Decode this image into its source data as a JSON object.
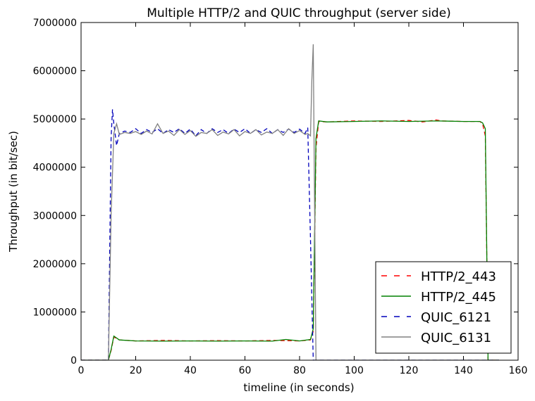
{
  "chart_data": {
    "type": "line",
    "title": "Multiple HTTP/2 and QUIC throughput (server side)",
    "xlabel": "timeline (in seconds)",
    "ylabel": "Throughput (in bit/sec)",
    "xlim": [
      0,
      160
    ],
    "ylim": [
      0,
      7000000
    ],
    "x_ticks": [
      "0",
      "20",
      "40",
      "60",
      "80",
      "100",
      "120",
      "140",
      "160"
    ],
    "y_ticks": [
      "0",
      "1000000",
      "2000000",
      "3000000",
      "4000000",
      "5000000",
      "6000000",
      "7000000"
    ],
    "grid": false,
    "legend_position": "lower-right",
    "series": [
      {
        "name": "HTTP/2_443",
        "color": "#ff0000",
        "style": "dashed",
        "points": [
          [
            0,
            0
          ],
          [
            10,
            0
          ],
          [
            11,
            200000
          ],
          [
            12,
            480000
          ],
          [
            14,
            420000
          ],
          [
            20,
            400000
          ],
          [
            30,
            410000
          ],
          [
            40,
            400000
          ],
          [
            50,
            405000
          ],
          [
            60,
            400000
          ],
          [
            70,
            410000
          ],
          [
            80,
            400000
          ],
          [
            84,
            420000
          ],
          [
            85,
            600000
          ],
          [
            86,
            4400000
          ],
          [
            87,
            4950000
          ],
          [
            90,
            4940000
          ],
          [
            100,
            4960000
          ],
          [
            110,
            4950000
          ],
          [
            120,
            4970000
          ],
          [
            125,
            4940000
          ],
          [
            130,
            4980000
          ],
          [
            132,
            4960000
          ],
          [
            140,
            4950000
          ],
          [
            146,
            4950000
          ],
          [
            147,
            4900000
          ],
          [
            148,
            4650000
          ],
          [
            149,
            0
          ],
          [
            153,
            0
          ]
        ]
      },
      {
        "name": "HTTP/2_445",
        "color": "#008000",
        "style": "solid",
        "points": [
          [
            0,
            0
          ],
          [
            10,
            0
          ],
          [
            11,
            220000
          ],
          [
            12,
            500000
          ],
          [
            14,
            420000
          ],
          [
            20,
            400000
          ],
          [
            30,
            395000
          ],
          [
            40,
            400000
          ],
          [
            50,
            395000
          ],
          [
            60,
            400000
          ],
          [
            70,
            395000
          ],
          [
            75,
            430000
          ],
          [
            80,
            400000
          ],
          [
            84,
            430000
          ],
          [
            85,
            650000
          ],
          [
            86,
            4600000
          ],
          [
            87,
            4960000
          ],
          [
            90,
            4940000
          ],
          [
            100,
            4950000
          ],
          [
            110,
            4960000
          ],
          [
            120,
            4950000
          ],
          [
            130,
            4960000
          ],
          [
            140,
            4950000
          ],
          [
            146,
            4950000
          ],
          [
            147,
            4920000
          ],
          [
            148,
            4800000
          ],
          [
            149,
            0
          ],
          [
            153,
            0
          ]
        ]
      },
      {
        "name": "QUIC_6121",
        "color": "#0000bb",
        "style": "dashed",
        "points": [
          [
            0,
            0
          ],
          [
            10,
            0
          ],
          [
            11,
            4600000
          ],
          [
            11.5,
            5200000
          ],
          [
            12,
            4900000
          ],
          [
            13,
            4450000
          ],
          [
            14,
            4700000
          ],
          [
            16,
            4750000
          ],
          [
            18,
            4720000
          ],
          [
            20,
            4800000
          ],
          [
            22,
            4700000
          ],
          [
            24,
            4780000
          ],
          [
            26,
            4720000
          ],
          [
            28,
            4800000
          ],
          [
            30,
            4700000
          ],
          [
            32,
            4780000
          ],
          [
            34,
            4720000
          ],
          [
            36,
            4800000
          ],
          [
            38,
            4700000
          ],
          [
            40,
            4790000
          ],
          [
            42,
            4650000
          ],
          [
            44,
            4780000
          ],
          [
            46,
            4700000
          ],
          [
            48,
            4800000
          ],
          [
            50,
            4720000
          ],
          [
            52,
            4780000
          ],
          [
            54,
            4700000
          ],
          [
            56,
            4790000
          ],
          [
            58,
            4720000
          ],
          [
            60,
            4800000
          ],
          [
            62,
            4700000
          ],
          [
            64,
            4780000
          ],
          [
            66,
            4720000
          ],
          [
            68,
            4800000
          ],
          [
            70,
            4700000
          ],
          [
            72,
            4780000
          ],
          [
            74,
            4720000
          ],
          [
            76,
            4790000
          ],
          [
            78,
            4720000
          ],
          [
            80,
            4790000
          ],
          [
            82,
            4700000
          ],
          [
            83,
            4820000
          ],
          [
            84,
            2500000
          ],
          [
            85,
            0
          ],
          [
            86,
            0
          ],
          [
            153,
            0
          ]
        ]
      },
      {
        "name": "QUIC_6131",
        "color": "#808080",
        "style": "solid",
        "points": [
          [
            0,
            0
          ],
          [
            10,
            0
          ],
          [
            11,
            3000000
          ],
          [
            12,
            4700000
          ],
          [
            13,
            4900000
          ],
          [
            14,
            4680000
          ],
          [
            16,
            4720000
          ],
          [
            18,
            4700000
          ],
          [
            20,
            4740000
          ],
          [
            22,
            4680000
          ],
          [
            24,
            4750000
          ],
          [
            26,
            4690000
          ],
          [
            28,
            4900000
          ],
          [
            30,
            4700000
          ],
          [
            32,
            4750000
          ],
          [
            34,
            4660000
          ],
          [
            36,
            4780000
          ],
          [
            38,
            4680000
          ],
          [
            40,
            4760000
          ],
          [
            42,
            4640000
          ],
          [
            44,
            4720000
          ],
          [
            46,
            4700000
          ],
          [
            48,
            4780000
          ],
          [
            50,
            4660000
          ],
          [
            52,
            4730000
          ],
          [
            54,
            4690000
          ],
          [
            56,
            4780000
          ],
          [
            58,
            4650000
          ],
          [
            60,
            4740000
          ],
          [
            62,
            4700000
          ],
          [
            64,
            4780000
          ],
          [
            66,
            4670000
          ],
          [
            68,
            4730000
          ],
          [
            70,
            4700000
          ],
          [
            72,
            4780000
          ],
          [
            74,
            4660000
          ],
          [
            76,
            4800000
          ],
          [
            78,
            4700000
          ],
          [
            80,
            4760000
          ],
          [
            82,
            4680000
          ],
          [
            83,
            4700000
          ],
          [
            84,
            4650000
          ],
          [
            84.5,
            5800000
          ],
          [
            85,
            6550000
          ],
          [
            85.5,
            3200000
          ],
          [
            86,
            0
          ],
          [
            87,
            0
          ],
          [
            153,
            0
          ]
        ]
      }
    ]
  }
}
